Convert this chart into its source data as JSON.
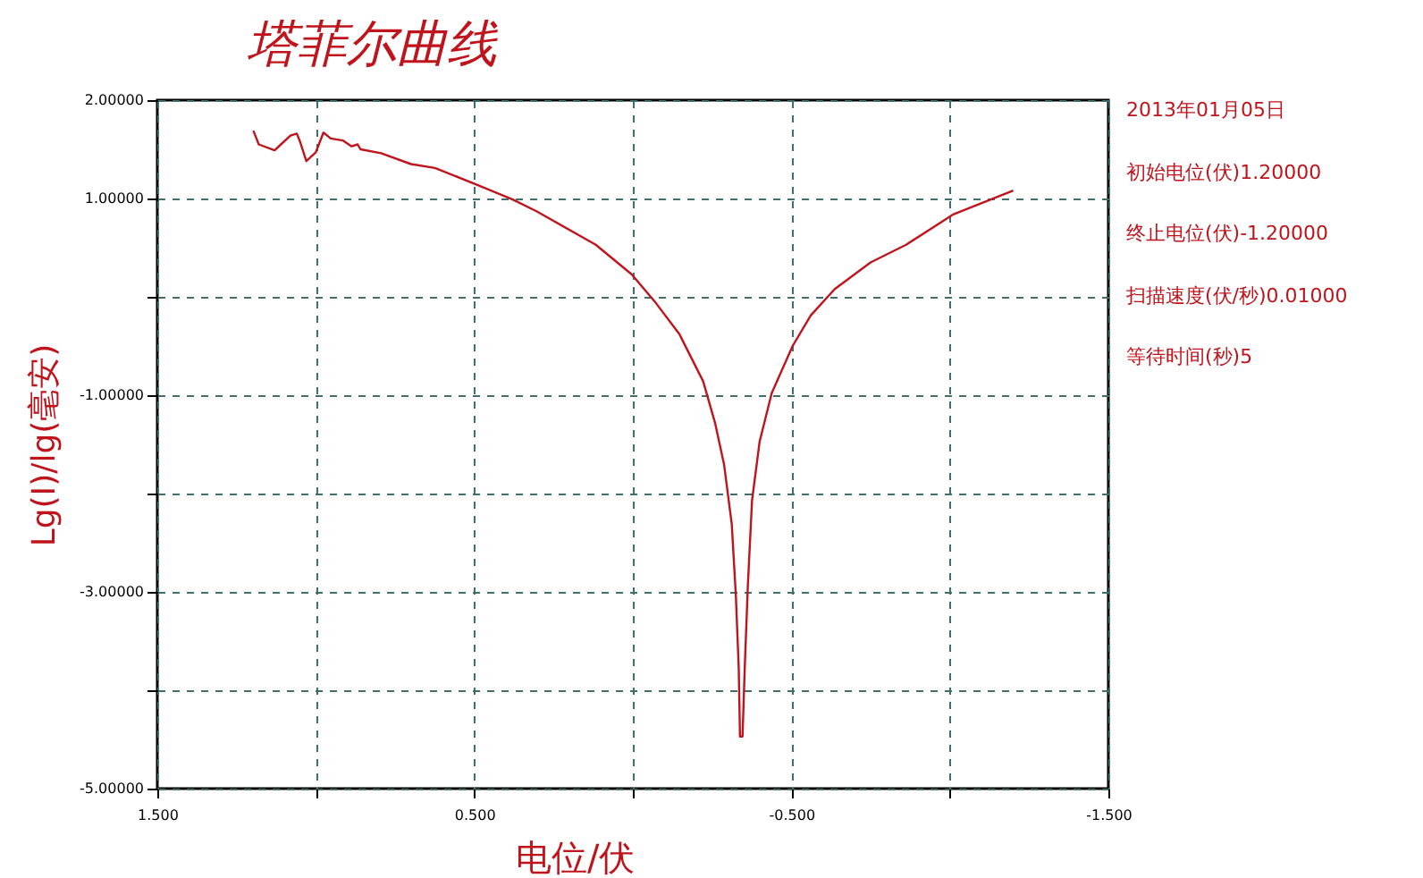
{
  "chart_data": {
    "type": "line",
    "title": "塔菲尔曲线",
    "xlabel": "电位/伏",
    "ylabel": "Lg(I)/lg(毫安)",
    "annotations": [
      "2013年01月05日",
      "初始电位(伏)1.20000",
      "终止电位(伏)-1.20000",
      "扫描速度(伏/秒)0.01000",
      "等待时间(秒)5"
    ],
    "xlim": [
      1.5,
      -1.5
    ],
    "ylim": [
      -5,
      2
    ],
    "xticks": [
      {
        "value": 1.5,
        "label": "1.500"
      },
      {
        "value": 1,
        "label": null
      },
      {
        "value": 0.5,
        "label": "0.500"
      },
      {
        "value": 0,
        "label": null
      },
      {
        "value": -0.5,
        "label": "-0.500"
      },
      {
        "value": -1,
        "label": null
      },
      {
        "value": -1.5,
        "label": "-1.500"
      }
    ],
    "yticks": [
      {
        "value": 2,
        "label": "2.00000"
      },
      {
        "value": 1,
        "label": "1.00000"
      },
      {
        "value": 0,
        "label": null
      },
      {
        "value": -1,
        "label": "-1.00000"
      },
      {
        "value": -2,
        "label": null
      },
      {
        "value": -3,
        "label": "-3.00000"
      },
      {
        "value": -4,
        "label": null
      },
      {
        "value": -5,
        "label": "-5.00000"
      }
    ],
    "grid": true,
    "line_style": "solid",
    "series": [
      {
        "color": "#c0141c",
        "x": [
          1.197,
          1.18,
          1.13,
          1.11,
          1.08,
          1.06,
          1.05,
          1.03,
          1.0,
          0.976,
          0.953,
          0.915,
          0.887,
          0.868,
          0.859,
          0.794,
          0.7,
          0.624,
          0.492,
          0.379,
          0.304,
          0.117,
          0.004,
          -0.072,
          -0.147,
          -0.222,
          -0.26,
          -0.288,
          -0.312,
          -0.325,
          -0.334,
          -0.338,
          -0.346,
          -0.353,
          -0.363,
          -0.376,
          -0.4,
          -0.438,
          -0.504,
          -0.561,
          -0.637,
          -0.75,
          -0.862,
          -1.012,
          -1.2
        ],
        "values": [
          1.69,
          1.55,
          1.49,
          1.55,
          1.64,
          1.66,
          1.58,
          1.38,
          1.47,
          1.67,
          1.61,
          1.59,
          1.53,
          1.55,
          1.5,
          1.46,
          1.35,
          1.31,
          1.14,
          0.99,
          0.87,
          0.53,
          0.23,
          -0.06,
          -0.38,
          -0.86,
          -1.29,
          -1.71,
          -2.31,
          -3.04,
          -3.77,
          -4.47,
          -4.47,
          -3.77,
          -2.92,
          -2.07,
          -1.47,
          -0.98,
          -0.5,
          -0.19,
          0.08,
          0.35,
          0.53,
          0.84,
          1.08
        ]
      }
    ]
  }
}
